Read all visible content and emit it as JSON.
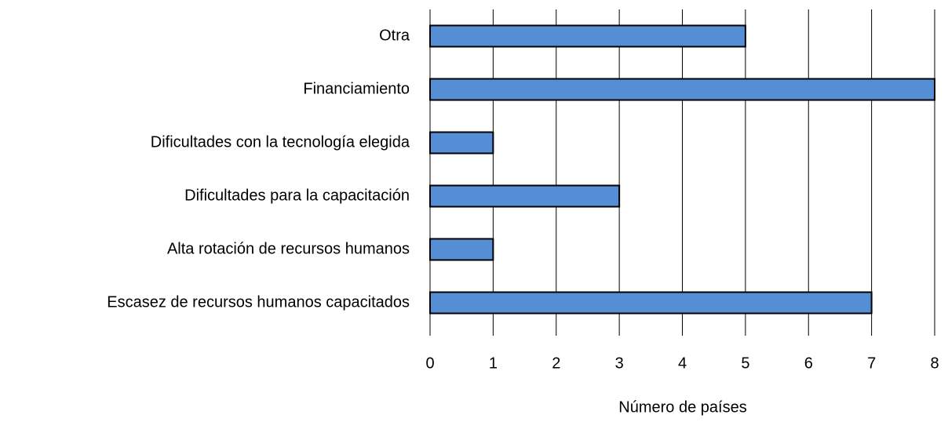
{
  "chart_data": {
    "type": "bar",
    "orientation": "horizontal",
    "categories": [
      "Otra",
      "Financiamiento",
      "Dificultades con la tecnología elegida",
      "Dificultades para la capacitación",
      "Alta rotación de recursos humanos",
      "Escasez de recursos humanos capacitados"
    ],
    "values": [
      5,
      8,
      1,
      3,
      1,
      7
    ],
    "color": "#558ed5",
    "xlabel": "Número de países",
    "xlim": [
      0,
      8
    ],
    "xticks": [
      0,
      1,
      2,
      3,
      4,
      5,
      6,
      7,
      8
    ],
    "grid": true
  }
}
